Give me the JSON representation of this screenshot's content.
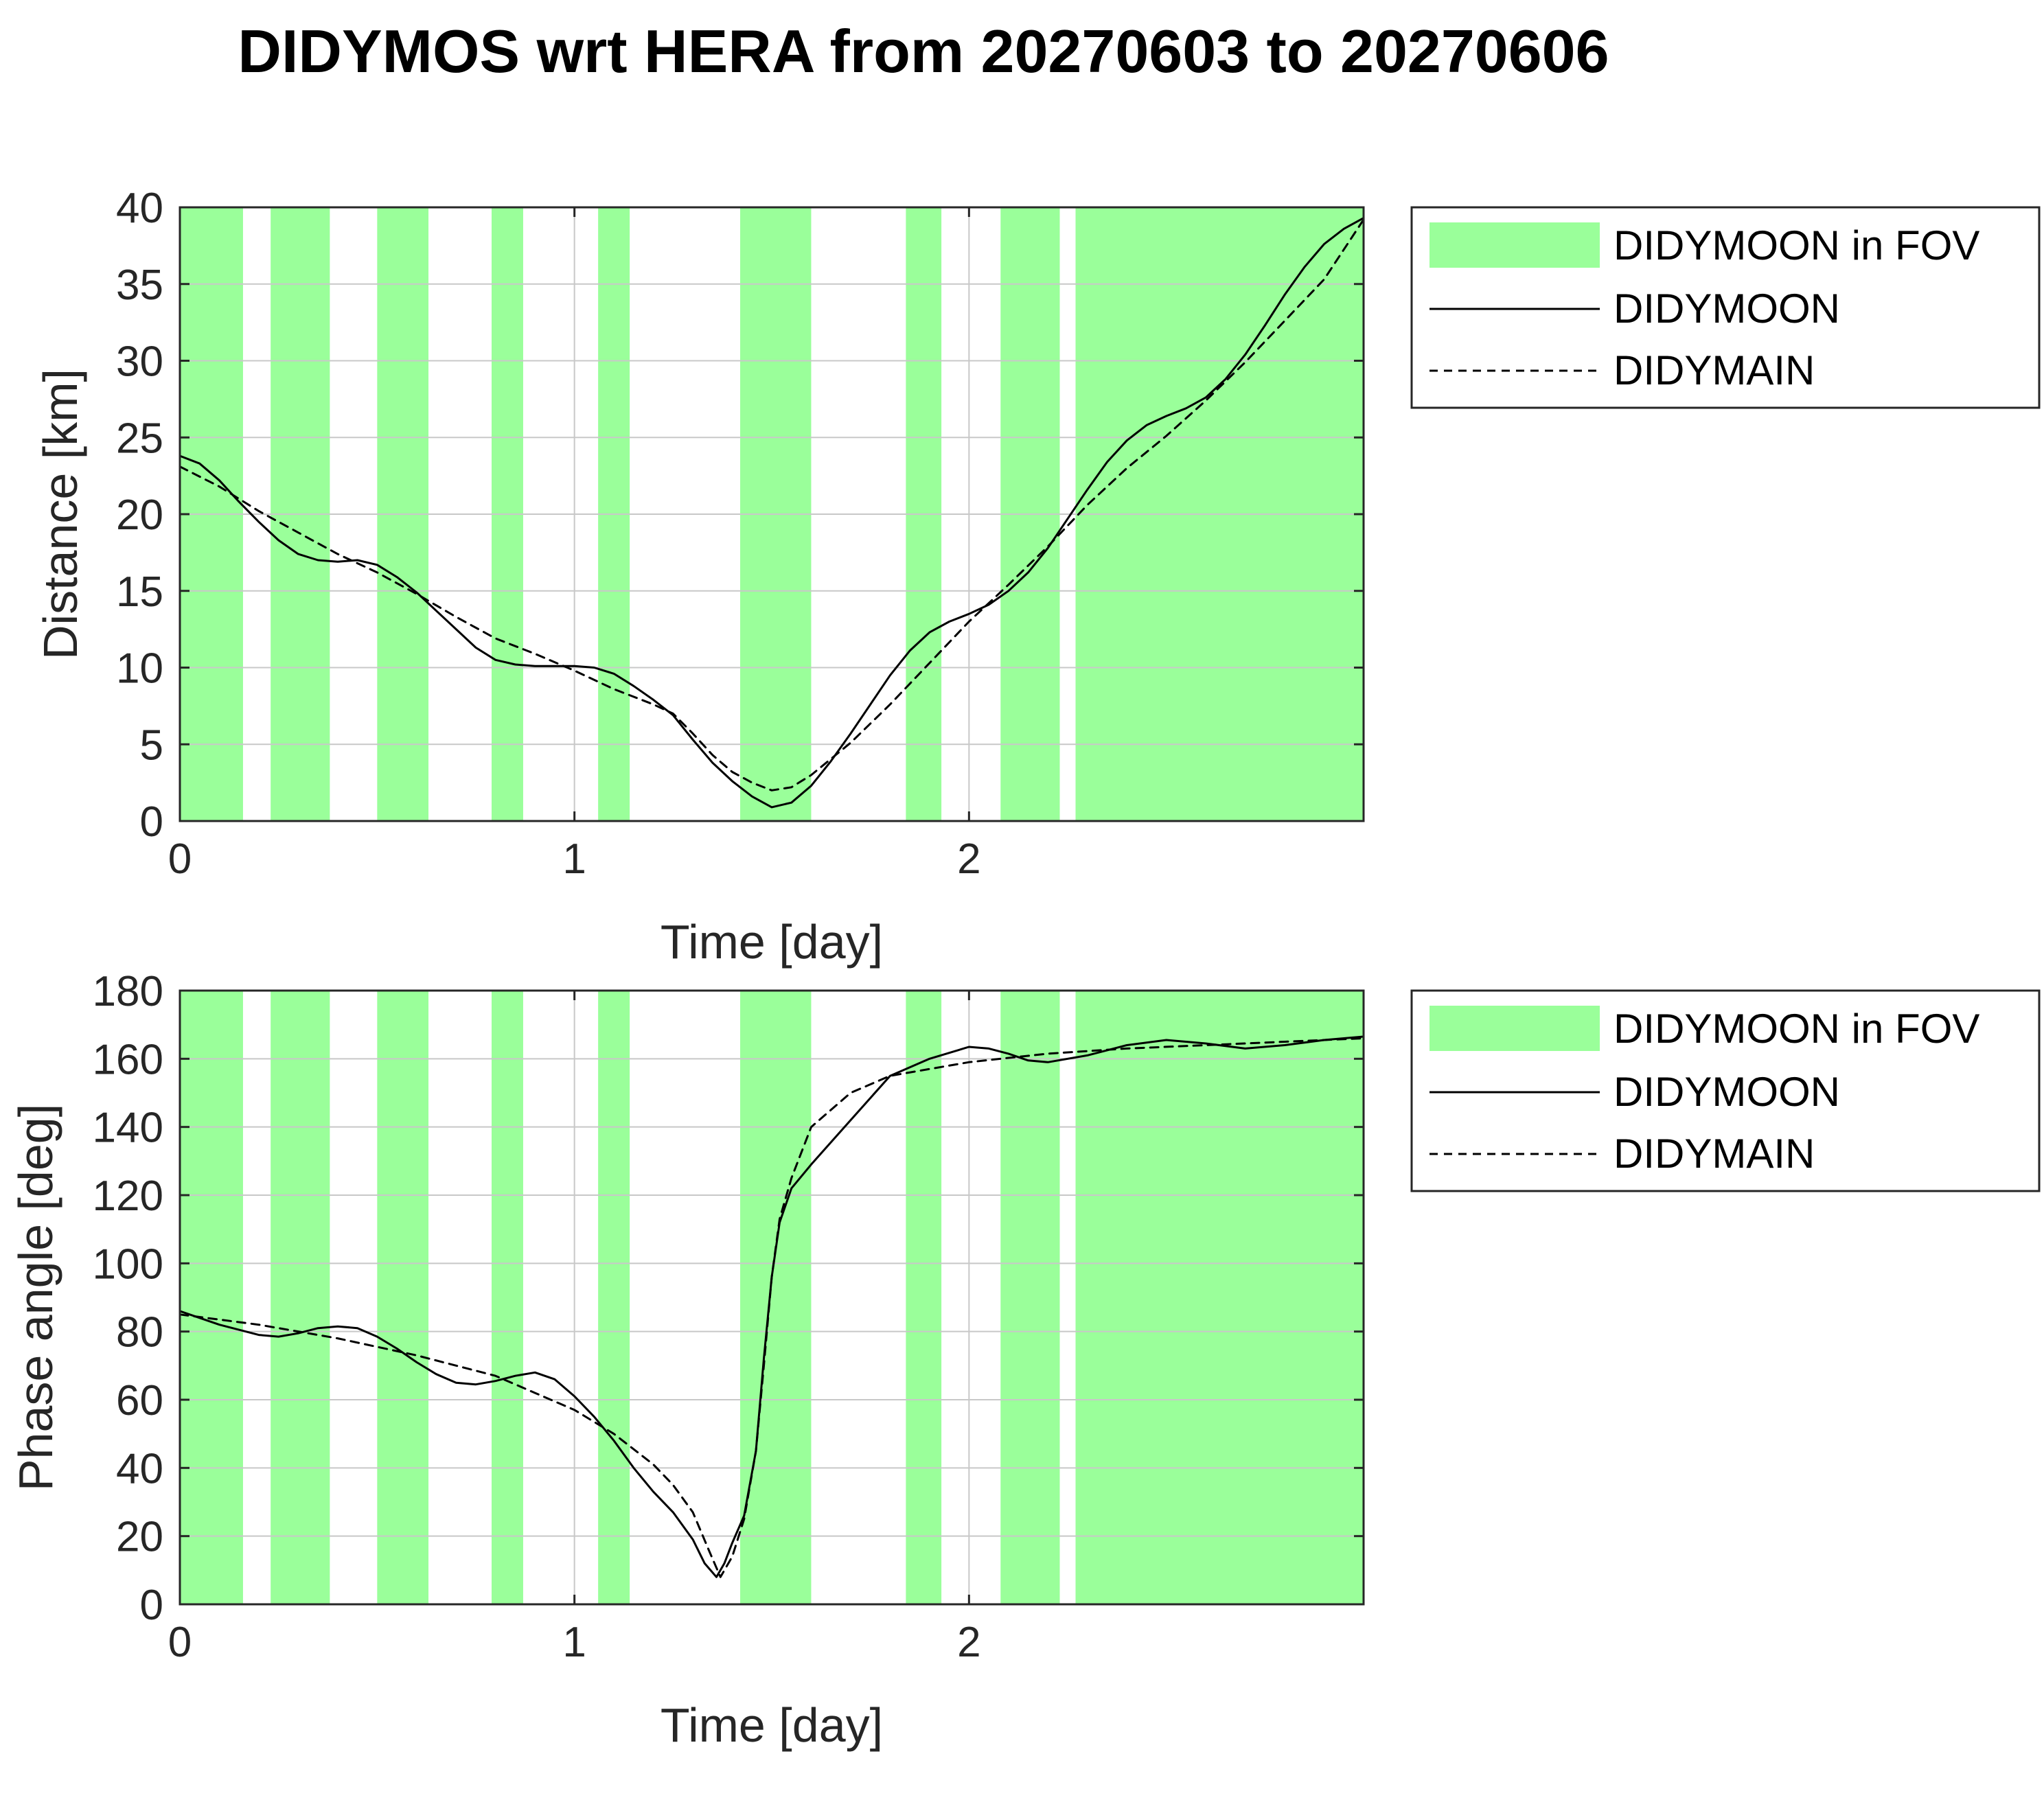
{
  "figure": {
    "title": "DIDYMOS wrt HERA from 20270603 to 20270606"
  },
  "colors": {
    "fov_fill": "#9aff9a",
    "line": "#000000",
    "grid": "#c8c8c8",
    "tick_text": "#262626"
  },
  "chart_data": [
    {
      "type": "line",
      "title": "",
      "xlabel": "Time [day]",
      "ylabel": "Distance [km]",
      "xlim": [
        0,
        3
      ],
      "ylim": [
        0,
        40
      ],
      "xticks": [
        0,
        1,
        2
      ],
      "yticks": [
        0,
        5,
        10,
        15,
        20,
        25,
        30,
        35,
        40
      ],
      "grid": true,
      "legend_position": "outside-right-top",
      "fov_intervals": [
        [
          0,
          0.16
        ],
        [
          0.23,
          0.38
        ],
        [
          0.5,
          0.63
        ],
        [
          0.79,
          0.87
        ],
        [
          1.06,
          1.14
        ],
        [
          1.42,
          1.6
        ],
        [
          1.84,
          1.93
        ],
        [
          2.08,
          2.23
        ],
        [
          2.27,
          3.0
        ]
      ],
      "series": [
        {
          "name": "DIDYMOON",
          "style": "solid",
          "x": [
            0,
            0.05,
            0.1,
            0.15,
            0.2,
            0.25,
            0.3,
            0.35,
            0.4,
            0.45,
            0.5,
            0.55,
            0.6,
            0.65,
            0.7,
            0.75,
            0.8,
            0.85,
            0.9,
            0.95,
            1.0,
            1.05,
            1.1,
            1.15,
            1.2,
            1.25,
            1.3,
            1.35,
            1.4,
            1.45,
            1.5,
            1.55,
            1.6,
            1.65,
            1.7,
            1.75,
            1.8,
            1.85,
            1.9,
            1.95,
            2.0,
            2.05,
            2.1,
            2.15,
            2.2,
            2.25,
            2.3,
            2.35,
            2.4,
            2.45,
            2.5,
            2.55,
            2.6,
            2.65,
            2.7,
            2.75,
            2.8,
            2.85,
            2.9,
            2.95,
            3.0
          ],
          "y": [
            23.8,
            23.3,
            22.2,
            20.8,
            19.5,
            18.3,
            17.4,
            17.0,
            16.9,
            17.0,
            16.7,
            15.9,
            14.9,
            13.7,
            12.5,
            11.3,
            10.5,
            10.2,
            10.1,
            10.1,
            10.1,
            10.0,
            9.6,
            8.8,
            7.9,
            6.9,
            5.3,
            3.8,
            2.6,
            1.6,
            0.9,
            1.2,
            2.3,
            3.9,
            5.7,
            7.6,
            9.5,
            11.1,
            12.3,
            13.0,
            13.5,
            14.1,
            15.0,
            16.2,
            17.8,
            19.7,
            21.6,
            23.4,
            24.8,
            25.8,
            26.4,
            26.9,
            27.6,
            28.8,
            30.4,
            32.3,
            34.3,
            36.1,
            37.6,
            38.6,
            39.3
          ]
        },
        {
          "name": "DIDYMAIN",
          "style": "dashed",
          "x": [
            0,
            0.1,
            0.2,
            0.3,
            0.4,
            0.5,
            0.6,
            0.7,
            0.8,
            0.9,
            1.0,
            1.1,
            1.2,
            1.25,
            1.3,
            1.35,
            1.4,
            1.45,
            1.5,
            1.55,
            1.6,
            1.7,
            1.8,
            1.9,
            2.0,
            2.1,
            2.2,
            2.3,
            2.4,
            2.5,
            2.6,
            2.7,
            2.8,
            2.9,
            3.0
          ],
          "y": [
            23.1,
            21.8,
            20.2,
            18.8,
            17.4,
            16.2,
            14.8,
            13.3,
            11.9,
            10.9,
            9.8,
            8.6,
            7.6,
            7.0,
            5.7,
            4.3,
            3.2,
            2.5,
            2.0,
            2.2,
            3.0,
            5.1,
            7.6,
            10.3,
            13.0,
            15.4,
            17.9,
            20.6,
            23.0,
            25.1,
            27.4,
            29.9,
            32.6,
            35.3,
            39.2
          ]
        }
      ]
    },
    {
      "type": "line",
      "title": "",
      "xlabel": "Time [day]",
      "ylabel": "Phase angle [deg]",
      "xlim": [
        0,
        3
      ],
      "ylim": [
        0,
        180
      ],
      "xticks": [
        0,
        1,
        2
      ],
      "yticks": [
        0,
        20,
        40,
        60,
        80,
        100,
        120,
        140,
        160,
        180
      ],
      "grid": true,
      "legend_position": "outside-right-top",
      "fov_intervals": [
        [
          0,
          0.16
        ],
        [
          0.23,
          0.38
        ],
        [
          0.5,
          0.63
        ],
        [
          0.79,
          0.87
        ],
        [
          1.06,
          1.14
        ],
        [
          1.42,
          1.6
        ],
        [
          1.84,
          1.93
        ],
        [
          2.08,
          2.23
        ],
        [
          2.27,
          3.0
        ]
      ],
      "series": [
        {
          "name": "DIDYMOON",
          "style": "solid",
          "x": [
            0,
            0.1,
            0.2,
            0.25,
            0.3,
            0.35,
            0.4,
            0.45,
            0.5,
            0.55,
            0.6,
            0.65,
            0.7,
            0.75,
            0.8,
            0.85,
            0.9,
            0.95,
            1.0,
            1.05,
            1.1,
            1.15,
            1.2,
            1.25,
            1.3,
            1.33,
            1.36,
            1.38,
            1.4,
            1.43,
            1.46,
            1.48,
            1.5,
            1.52,
            1.55,
            1.6,
            1.7,
            1.8,
            1.9,
            2.0,
            2.05,
            2.1,
            2.15,
            2.2,
            2.3,
            2.4,
            2.5,
            2.6,
            2.7,
            2.8,
            2.9,
            3.0
          ],
          "y": [
            86,
            82,
            79,
            78.5,
            79.5,
            81,
            81.5,
            81,
            78.5,
            75,
            71,
            67.5,
            65,
            64.5,
            65.5,
            67,
            68,
            66,
            61,
            55,
            48,
            40,
            33,
            27,
            19,
            12,
            8,
            12,
            18,
            26,
            45,
            72,
            96,
            112,
            122,
            129,
            142,
            155,
            160,
            163.5,
            163,
            161.5,
            159.5,
            159,
            161,
            164,
            165.5,
            164.5,
            163,
            164,
            165.5,
            166.5
          ]
        },
        {
          "name": "DIDYMAIN",
          "style": "dashed",
          "x": [
            0,
            0.2,
            0.4,
            0.6,
            0.8,
            0.9,
            1.0,
            1.1,
            1.2,
            1.25,
            1.3,
            1.34,
            1.37,
            1.4,
            1.43,
            1.46,
            1.48,
            1.5,
            1.52,
            1.55,
            1.6,
            1.7,
            1.8,
            1.9,
            2.0,
            2.2,
            2.4,
            2.6,
            2.8,
            3.0
          ],
          "y": [
            85,
            82,
            78,
            73,
            67,
            62,
            57,
            50,
            41,
            35,
            27,
            16,
            8,
            14,
            25,
            45,
            70,
            96,
            113,
            125,
            140,
            150,
            155,
            157,
            159,
            161.5,
            163,
            164,
            165,
            166
          ]
        }
      ]
    }
  ]
}
